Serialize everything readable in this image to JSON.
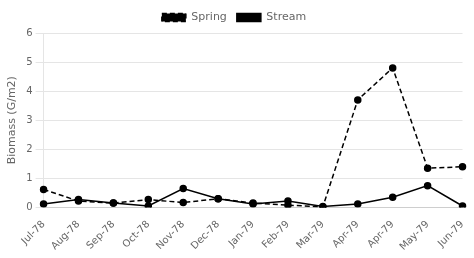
{
  "chart_data": {
    "type": "line",
    "categories": [
      "Jul-78",
      "Aug-78",
      "Sep-78",
      "Oct-78",
      "Nov-78",
      "Dec-78",
      "Jan-79",
      "Feb-79",
      "Mar-79",
      "Apr-79",
      "Apr-79",
      "May-79",
      "Jun-79"
    ],
    "series": [
      {
        "name": "Spring",
        "color": "#000000",
        "line_style": "dashed",
        "marker": "circle",
        "values": [
          0.62,
          0.22,
          0.15,
          0.27,
          0.17,
          0.3,
          0.15,
          0.08,
          0.02,
          3.7,
          4.8,
          1.35,
          1.4
        ]
      },
      {
        "name": "Stream",
        "color": "#000000",
        "line_style": "solid",
        "marker": "circle",
        "values": [
          0.12,
          0.27,
          0.15,
          0.05,
          0.65,
          0.3,
          0.12,
          0.22,
          0.03,
          0.12,
          0.35,
          0.75,
          0.05
        ]
      }
    ],
    "y_label": "Biomass (G/m2)",
    "ylim": [
      0,
      6
    ],
    "yticks": [
      0,
      1,
      2,
      3,
      4,
      5,
      6
    ],
    "grid": "y",
    "legend": "top"
  }
}
